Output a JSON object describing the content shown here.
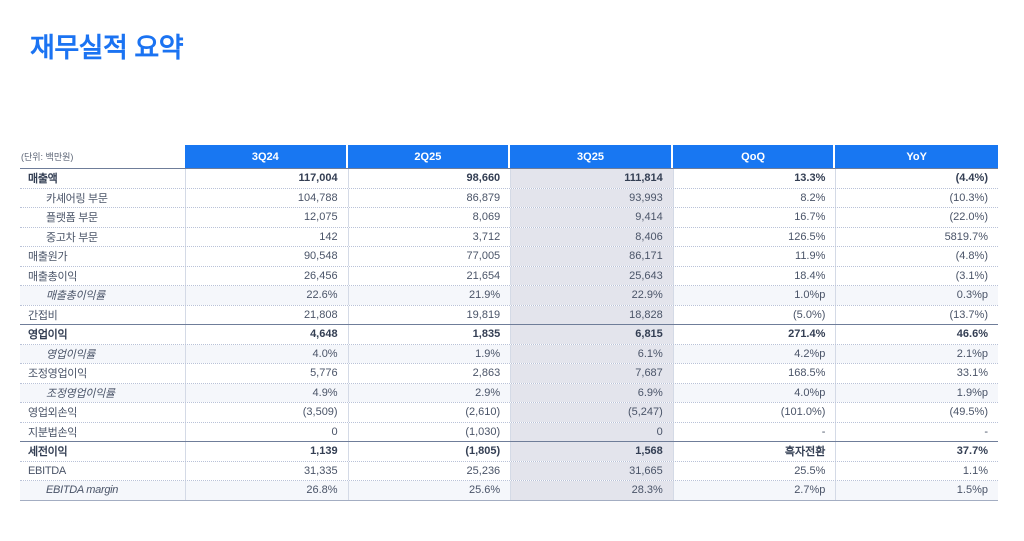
{
  "title": "재무실적 요약",
  "accent_color": "#1877f2",
  "highlight_color": "#e3e4ec",
  "table": {
    "unit_label": "(단위: 백만원)",
    "columns": [
      {
        "key": "3q24",
        "label": "3Q24"
      },
      {
        "key": "2q25",
        "label": "2Q25"
      },
      {
        "key": "3q25",
        "label": "3Q25"
      },
      {
        "key": "qoq",
        "label": "QoQ"
      },
      {
        "key": "yoy",
        "label": "YoY"
      }
    ],
    "highlight_column": "3Q25",
    "rows": [
      {
        "label": "매출액",
        "style": "bold section",
        "values": [
          "117,004",
          "98,660",
          "111,814",
          "13.3%",
          "(4.4%)"
        ]
      },
      {
        "label": "카셰어링 부문",
        "style": "sub",
        "values": [
          "104,788",
          "86,879",
          "93,993",
          "8.2%",
          "(10.3%)"
        ]
      },
      {
        "label": "플랫폼 부문",
        "style": "sub",
        "values": [
          "12,075",
          "8,069",
          "9,414",
          "16.7%",
          "(22.0%)"
        ]
      },
      {
        "label": "중고차 부문",
        "style": "sub",
        "values": [
          "142",
          "3,712",
          "8,406",
          "126.5%",
          "5819.7%"
        ]
      },
      {
        "label": "매출원가",
        "style": "",
        "values": [
          "90,548",
          "77,005",
          "86,171",
          "11.9%",
          "(4.8%)"
        ]
      },
      {
        "label": "매출총이익",
        "style": "",
        "values": [
          "26,456",
          "21,654",
          "25,643",
          "18.4%",
          "(3.1%)"
        ]
      },
      {
        "label": "매출총이익률",
        "style": "ratio",
        "values": [
          "22.6%",
          "21.9%",
          "22.9%",
          "1.0%p",
          "0.3%p"
        ]
      },
      {
        "label": "간접비",
        "style": "",
        "values": [
          "21,808",
          "19,819",
          "18,828",
          "(5.0%)",
          "(13.7%)"
        ]
      },
      {
        "label": "영업이익",
        "style": "bold section",
        "values": [
          "4,648",
          "1,835",
          "6,815",
          "271.4%",
          "46.6%"
        ]
      },
      {
        "label": "영업이익률",
        "style": "ratio",
        "values": [
          "4.0%",
          "1.9%",
          "6.1%",
          "4.2%p",
          "2.1%p"
        ]
      },
      {
        "label": "조정영업이익",
        "style": "",
        "values": [
          "5,776",
          "2,863",
          "7,687",
          "168.5%",
          "33.1%"
        ]
      },
      {
        "label": "조정영업이익률",
        "style": "ratio",
        "values": [
          "4.9%",
          "2.9%",
          "6.9%",
          "4.0%p",
          "1.9%p"
        ]
      },
      {
        "label": "영업외손익",
        "style": "",
        "values": [
          "(3,509)",
          "(2,610)",
          "(5,247)",
          "(101.0%)",
          "(49.5%)"
        ]
      },
      {
        "label": "지분법손익",
        "style": "",
        "values": [
          "0",
          "(1,030)",
          "0",
          "-",
          "-"
        ]
      },
      {
        "label": "세전이익",
        "style": "bold section",
        "values": [
          "1,139",
          "(1,805)",
          "1,568",
          "흑자전환",
          "37.7%"
        ]
      },
      {
        "label": "EBITDA",
        "style": "",
        "values": [
          "31,335",
          "25,236",
          "31,665",
          "25.5%",
          "1.1%"
        ]
      },
      {
        "label": "EBITDA margin",
        "style": "ratio",
        "values": [
          "26.8%",
          "25.6%",
          "28.3%",
          "2.7%p",
          "1.5%p"
        ]
      }
    ]
  }
}
